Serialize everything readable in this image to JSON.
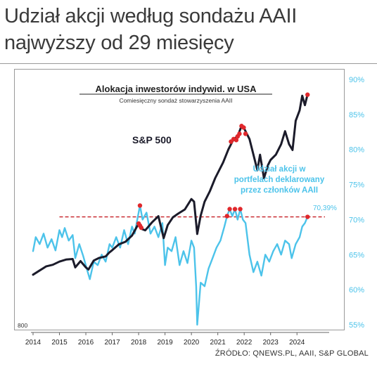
{
  "headline": {
    "line1": "Udział akcji według sondażu AAII",
    "line2": "najwyższy od 29 miesięcy"
  },
  "source": "ŹRÓDŁO: QNEWS.PL, AAII, S&P GLOBAL",
  "colors": {
    "sp500": "#1b1b2a",
    "aaii": "#4cc3ea",
    "highlight": "#e0282c",
    "threshold": "#c51d23",
    "right_axis": "#4cc3ea"
  },
  "chart_data": {
    "type": "line",
    "title": "Alokacja inwestorów indywid. w USA",
    "subtitle": "Comiesięczny sondaż stowarzyszenia AAII",
    "x_ticks": [
      "2014",
      "2015",
      "2016",
      "2017",
      "2018",
      "2019",
      "2020",
      "2021",
      "2022",
      "2023",
      "2024"
    ],
    "xlim": [
      2014.0,
      2024.9
    ],
    "right_axis": {
      "ticks": [
        "90%",
        "85%",
        "80%",
        "75%",
        "70%",
        "65%",
        "60%",
        "55%"
      ],
      "ylim": [
        55,
        90
      ]
    },
    "left_axis": {
      "visible_label": "800"
    },
    "series": [
      {
        "name": "S&P 500",
        "axis": "left",
        "ylim": [
          800,
          5300
        ],
        "points": [
          [
            2014.0,
            1800
          ],
          [
            2014.25,
            1880
          ],
          [
            2014.5,
            1960
          ],
          [
            2014.75,
            1990
          ],
          [
            2015.0,
            2050
          ],
          [
            2015.25,
            2090
          ],
          [
            2015.5,
            2100
          ],
          [
            2015.6,
            1940
          ],
          [
            2015.8,
            2060
          ],
          [
            2016.0,
            1940
          ],
          [
            2016.1,
            1900
          ],
          [
            2016.3,
            2070
          ],
          [
            2016.5,
            2120
          ],
          [
            2016.75,
            2150
          ],
          [
            2016.9,
            2230
          ],
          [
            2017.0,
            2270
          ],
          [
            2017.25,
            2380
          ],
          [
            2017.5,
            2430
          ],
          [
            2017.75,
            2550
          ],
          [
            2018.0,
            2780
          ],
          [
            2018.1,
            2680
          ],
          [
            2018.25,
            2650
          ],
          [
            2018.5,
            2800
          ],
          [
            2018.75,
            2920
          ],
          [
            2018.95,
            2500
          ],
          [
            2019.1,
            2750
          ],
          [
            2019.3,
            2900
          ],
          [
            2019.5,
            2970
          ],
          [
            2019.75,
            3050
          ],
          [
            2020.0,
            3250
          ],
          [
            2020.1,
            3200
          ],
          [
            2020.22,
            2580
          ],
          [
            2020.35,
            2930
          ],
          [
            2020.5,
            3200
          ],
          [
            2020.7,
            3400
          ],
          [
            2020.9,
            3650
          ],
          [
            2021.0,
            3750
          ],
          [
            2021.2,
            3950
          ],
          [
            2021.4,
            4200
          ],
          [
            2021.6,
            4400
          ],
          [
            2021.75,
            4450
          ],
          [
            2021.9,
            4650
          ],
          [
            2022.0,
            4600
          ],
          [
            2022.2,
            4400
          ],
          [
            2022.4,
            4000
          ],
          [
            2022.5,
            3800
          ],
          [
            2022.6,
            4100
          ],
          [
            2022.75,
            3650
          ],
          [
            2022.9,
            3900
          ],
          [
            2023.0,
            4000
          ],
          [
            2023.2,
            4100
          ],
          [
            2023.4,
            4300
          ],
          [
            2023.55,
            4550
          ],
          [
            2023.7,
            4300
          ],
          [
            2023.83,
            4190
          ],
          [
            2023.95,
            4750
          ],
          [
            2024.1,
            4950
          ],
          [
            2024.2,
            5230
          ],
          [
            2024.3,
            5050
          ],
          [
            2024.4,
            5250
          ]
        ],
        "highlight_points": [
          [
            2018.0,
            2780
          ],
          [
            2018.05,
            2740
          ],
          [
            2018.1,
            2700
          ],
          [
            2021.5,
            4350
          ],
          [
            2021.6,
            4400
          ],
          [
            2021.7,
            4380
          ],
          [
            2021.75,
            4450
          ],
          [
            2021.82,
            4500
          ],
          [
            2021.9,
            4650
          ],
          [
            2021.98,
            4620
          ],
          [
            2022.05,
            4500
          ],
          [
            2024.4,
            5250
          ]
        ]
      },
      {
        "name": "Udział akcji w portfelach deklarowany przez członków AAII",
        "axis": "right",
        "points": [
          [
            2014.0,
            65.5
          ],
          [
            2014.1,
            67.5
          ],
          [
            2014.25,
            66.5
          ],
          [
            2014.4,
            68.0
          ],
          [
            2014.55,
            66.0
          ],
          [
            2014.7,
            67.2
          ],
          [
            2014.85,
            65.6
          ],
          [
            2015.0,
            68.5
          ],
          [
            2015.1,
            67.5
          ],
          [
            2015.2,
            68.8
          ],
          [
            2015.35,
            67.0
          ],
          [
            2015.5,
            67.8
          ],
          [
            2015.6,
            64.5
          ],
          [
            2015.75,
            66.5
          ],
          [
            2015.9,
            64.8
          ],
          [
            2016.05,
            62.8
          ],
          [
            2016.15,
            61.5
          ],
          [
            2016.3,
            64.0
          ],
          [
            2016.45,
            63.5
          ],
          [
            2016.6,
            65.0
          ],
          [
            2016.75,
            64.0
          ],
          [
            2016.9,
            66.5
          ],
          [
            2017.0,
            66.0
          ],
          [
            2017.15,
            67.5
          ],
          [
            2017.3,
            66.0
          ],
          [
            2017.45,
            68.5
          ],
          [
            2017.6,
            66.5
          ],
          [
            2017.75,
            69.0
          ],
          [
            2017.85,
            68.0
          ],
          [
            2017.95,
            70.0
          ],
          [
            2018.05,
            72.0
          ],
          [
            2018.15,
            70.0
          ],
          [
            2018.3,
            71.0
          ],
          [
            2018.45,
            68.0
          ],
          [
            2018.6,
            69.0
          ],
          [
            2018.75,
            67.5
          ],
          [
            2018.9,
            69.5
          ],
          [
            2019.0,
            63.5
          ],
          [
            2019.1,
            66.0
          ],
          [
            2019.25,
            65.5
          ],
          [
            2019.4,
            67.5
          ],
          [
            2019.55,
            63.5
          ],
          [
            2019.7,
            65.5
          ],
          [
            2019.85,
            63.8
          ],
          [
            2020.0,
            67.0
          ],
          [
            2020.1,
            66.0
          ],
          [
            2020.18,
            60.5
          ],
          [
            2020.22,
            55.0
          ],
          [
            2020.35,
            61.0
          ],
          [
            2020.5,
            60.5
          ],
          [
            2020.65,
            63.0
          ],
          [
            2020.8,
            64.5
          ],
          [
            2020.95,
            66.0
          ],
          [
            2021.1,
            67.0
          ],
          [
            2021.25,
            69.0
          ],
          [
            2021.35,
            70.5
          ],
          [
            2021.45,
            71.5
          ],
          [
            2021.55,
            70.5
          ],
          [
            2021.65,
            71.5
          ],
          [
            2021.75,
            70.0
          ],
          [
            2021.85,
            71.5
          ],
          [
            2021.95,
            70.0
          ],
          [
            2022.05,
            69.5
          ],
          [
            2022.2,
            65.0
          ],
          [
            2022.35,
            62.5
          ],
          [
            2022.5,
            64.0
          ],
          [
            2022.65,
            62.0
          ],
          [
            2022.8,
            65.0
          ],
          [
            2022.95,
            64.0
          ],
          [
            2023.1,
            65.5
          ],
          [
            2023.25,
            66.5
          ],
          [
            2023.4,
            65.0
          ],
          [
            2023.55,
            67.0
          ],
          [
            2023.7,
            66.5
          ],
          [
            2023.8,
            64.5
          ],
          [
            2023.95,
            66.5
          ],
          [
            2024.1,
            67.5
          ],
          [
            2024.2,
            69.0
          ],
          [
            2024.3,
            69.5
          ],
          [
            2024.4,
            70.39
          ]
        ],
        "highlight_points": [
          [
            2018.05,
            72.0
          ],
          [
            2021.35,
            70.5
          ],
          [
            2021.45,
            71.5
          ],
          [
            2021.65,
            71.5
          ],
          [
            2021.85,
            71.5
          ],
          [
            2024.4,
            70.39
          ]
        ]
      }
    ],
    "threshold": {
      "value": 70.39,
      "style": "dashed"
    },
    "annotations": {
      "sp500_label": "S&P 500",
      "aaii_label": [
        "Udział akcji w",
        "portfelach deklarowany",
        "przez członków AAII"
      ],
      "last_value": "70,39%"
    },
    "grid": false,
    "legend": "none"
  }
}
